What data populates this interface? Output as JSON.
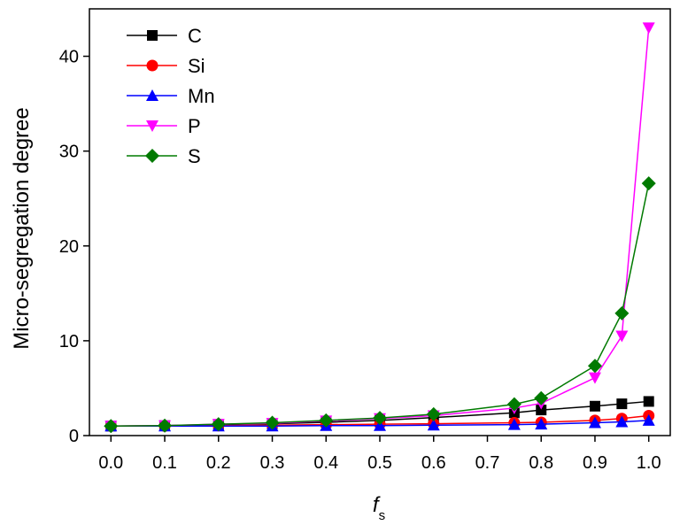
{
  "chart_data": {
    "type": "line",
    "xlabel": "f",
    "xlabel_sub": "s",
    "ylabel": "Micro-segregation degree",
    "xlim": [
      -0.04,
      1.04
    ],
    "ylim": [
      0,
      45
    ],
    "x_ticks": [
      0.0,
      0.1,
      0.2,
      0.3,
      0.4,
      0.5,
      0.6,
      0.7,
      0.8,
      0.9,
      1.0
    ],
    "x_tick_labels": [
      "0.0",
      "0.1",
      "0.2",
      "0.3",
      "0.4",
      "0.5",
      "0.6",
      "0.7",
      "0.8",
      "0.9",
      "1.0"
    ],
    "y_ticks": [
      0,
      10,
      20,
      30,
      40
    ],
    "y_tick_labels": [
      "0",
      "10",
      "20",
      "30",
      "40"
    ],
    "grid": false,
    "legend_position": "top-left",
    "x": [
      0.0,
      0.1,
      0.2,
      0.3,
      0.4,
      0.5,
      0.6,
      0.75,
      0.8,
      0.9,
      0.95,
      1.0
    ],
    "series": [
      {
        "name": "C",
        "color": "#000000",
        "marker": "square",
        "values": [
          1.0,
          1.05,
          1.15,
          1.25,
          1.4,
          1.6,
          1.9,
          2.4,
          2.7,
          3.1,
          3.35,
          3.6
        ]
      },
      {
        "name": "Si",
        "color": "#ff0000",
        "marker": "circle",
        "values": [
          1.0,
          1.0,
          1.05,
          1.1,
          1.15,
          1.2,
          1.25,
          1.35,
          1.4,
          1.6,
          1.8,
          2.1
        ]
      },
      {
        "name": "Mn",
        "color": "#0000ff",
        "marker": "triangle-up",
        "values": [
          1.0,
          1.0,
          1.0,
          1.0,
          1.05,
          1.05,
          1.1,
          1.15,
          1.2,
          1.35,
          1.45,
          1.6
        ]
      },
      {
        "name": "P",
        "color": "#ff00ff",
        "marker": "triangle-down",
        "values": [
          1.0,
          1.05,
          1.2,
          1.3,
          1.55,
          1.8,
          2.1,
          2.9,
          3.4,
          6.1,
          10.5,
          43.0
        ]
      },
      {
        "name": "S",
        "color": "#007a00",
        "marker": "diamond",
        "values": [
          1.0,
          1.05,
          1.2,
          1.35,
          1.6,
          1.85,
          2.25,
          3.3,
          3.95,
          7.35,
          12.9,
          26.6
        ]
      }
    ]
  }
}
